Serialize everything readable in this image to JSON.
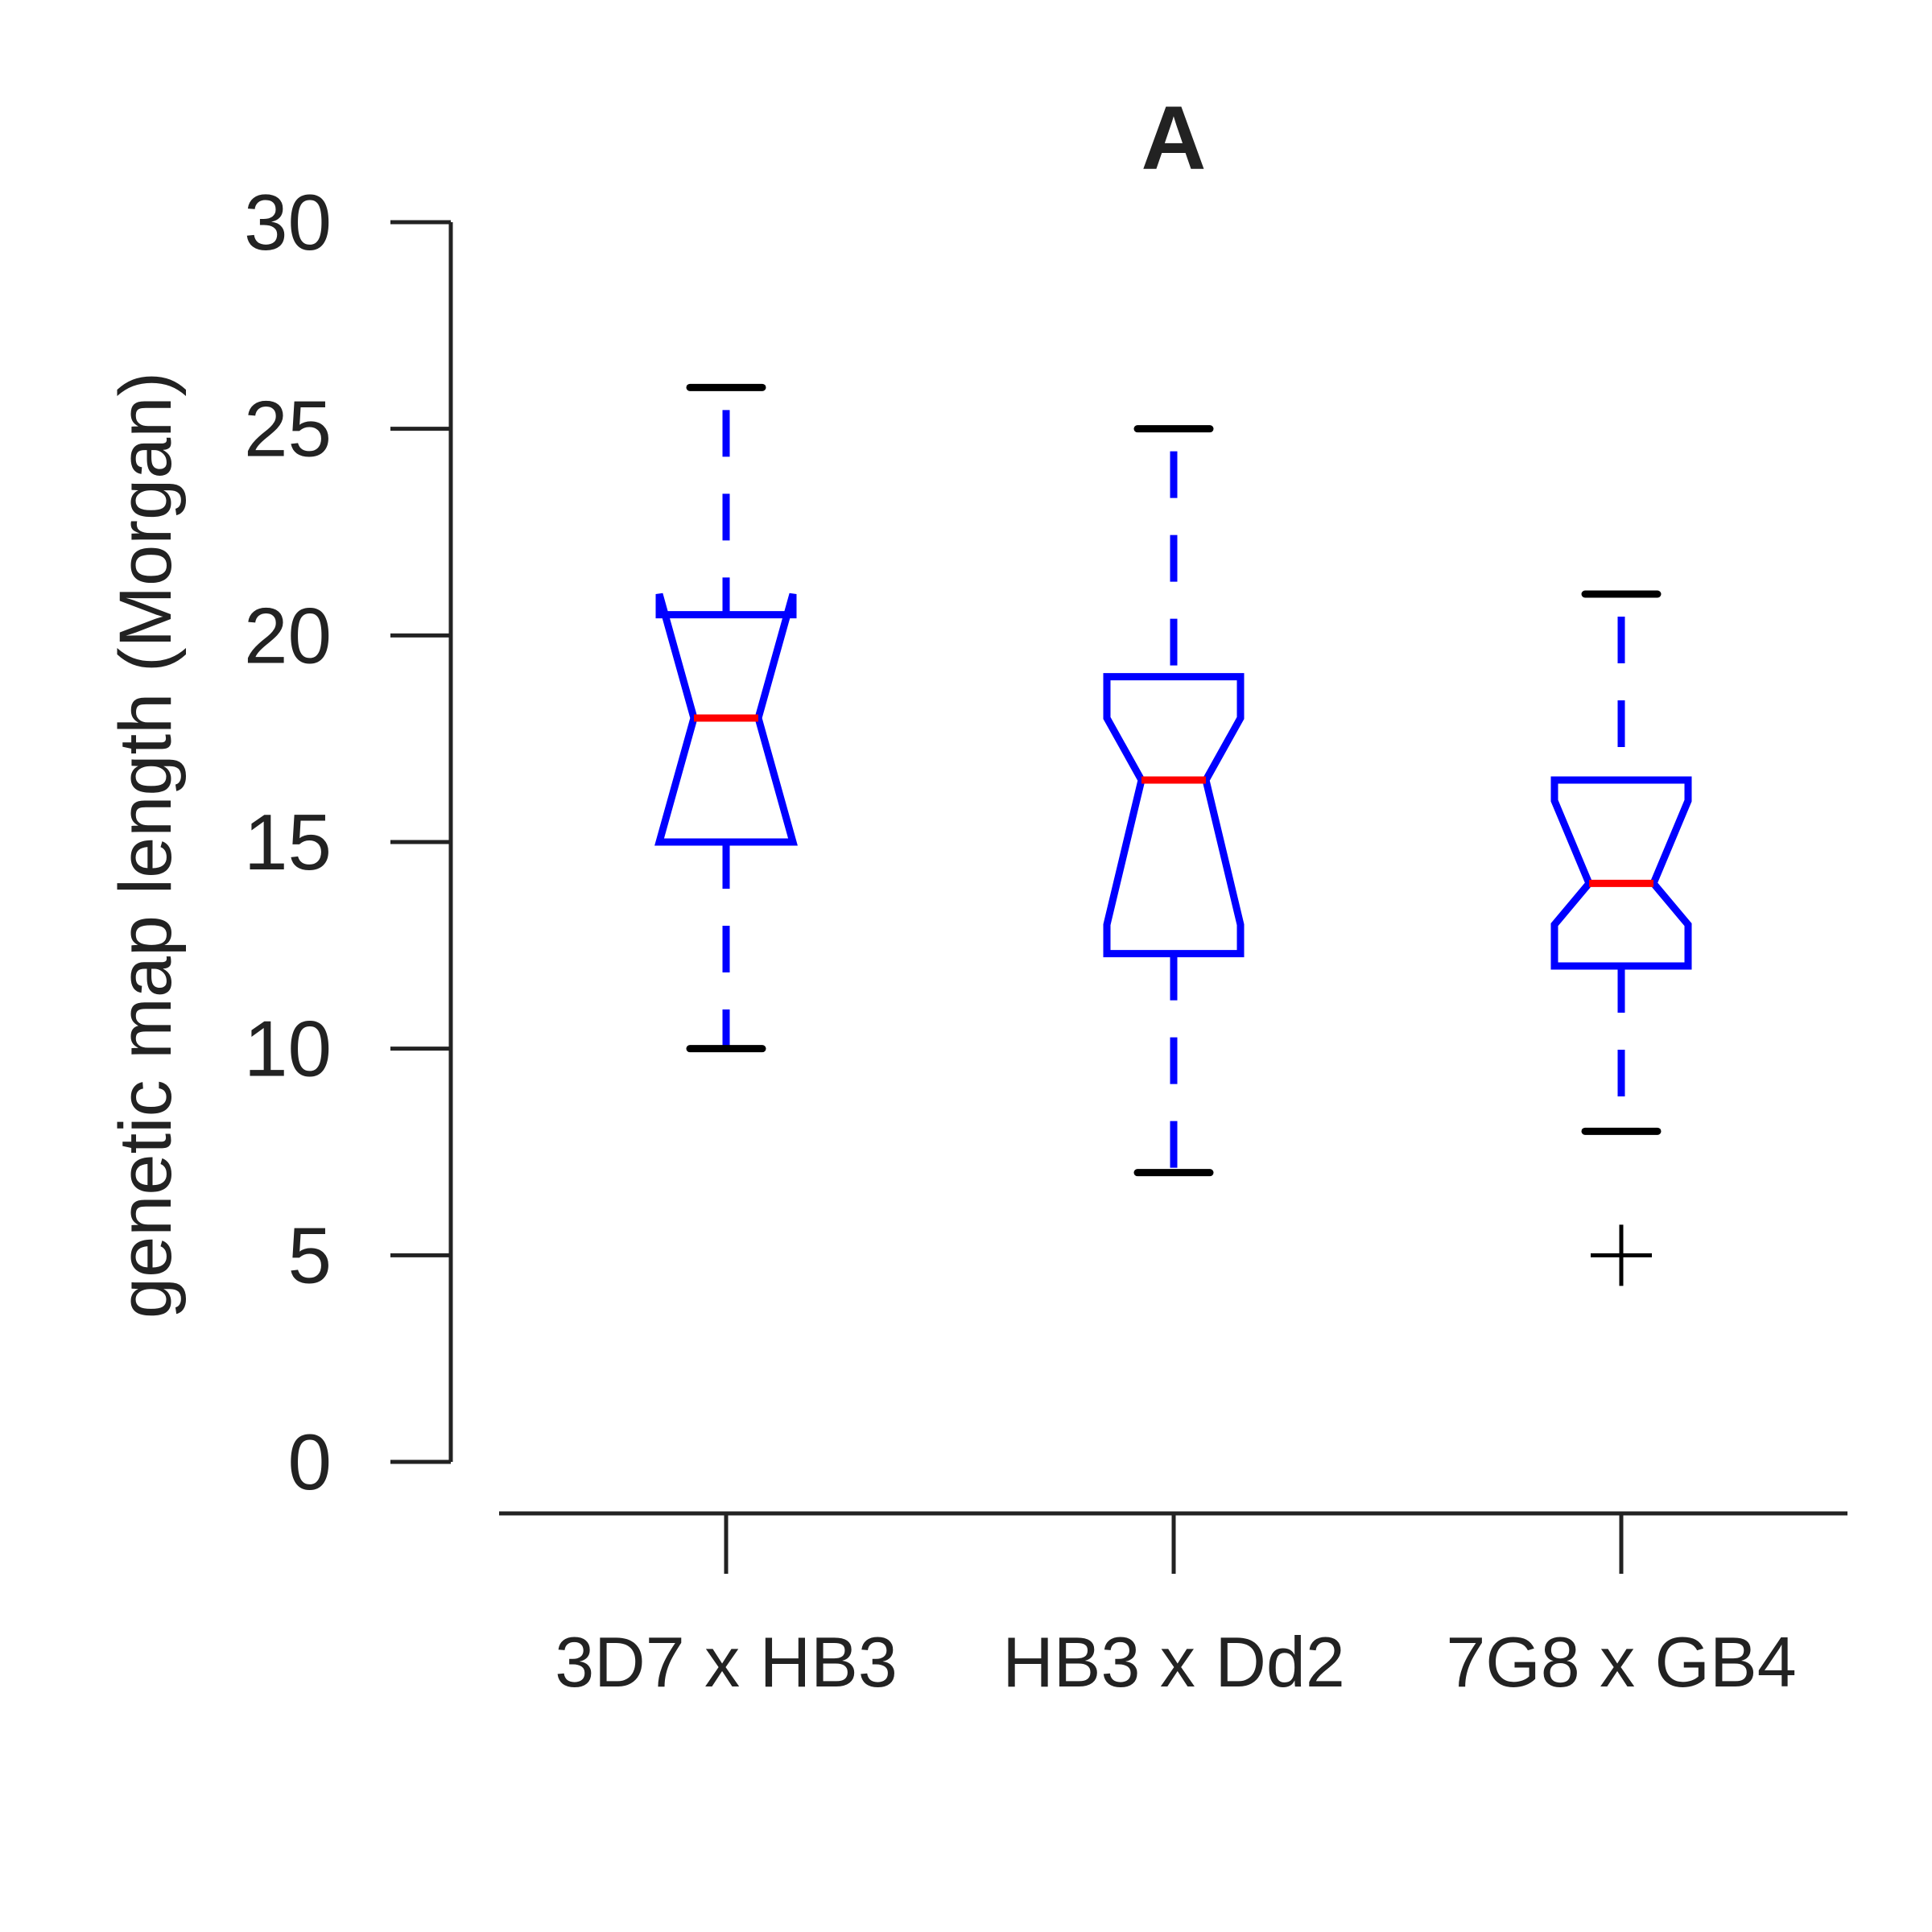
{
  "chart_data": {
    "type": "boxplot",
    "title": "A",
    "ylabel": "genetic map length (Morgan)",
    "ylim": [
      0,
      30
    ],
    "yticks": [
      0,
      5,
      10,
      15,
      20,
      25,
      30
    ],
    "notched": true,
    "categories": [
      "3D7 x HB3",
      "HB3 x Dd2",
      "7G8 x GB4"
    ],
    "boxes": [
      {
        "whisker_low": 10,
        "q1": 15,
        "median": 18,
        "q3": 20.5,
        "whisker_high": 26,
        "notch_low": 15,
        "notch_high": 21,
        "outliers": []
      },
      {
        "whisker_low": 7,
        "q1": 12.3,
        "median": 16.5,
        "q3": 19,
        "whisker_high": 25,
        "notch_low": 13,
        "notch_high": 18,
        "outliers": []
      },
      {
        "whisker_low": 8,
        "q1": 12,
        "median": 14,
        "q3": 16.5,
        "whisker_high": 21,
        "notch_low": 13,
        "notch_high": 16,
        "outliers": [
          5
        ]
      }
    ],
    "colors": {
      "box": "#0000ff",
      "median": "#ff0000",
      "cap": "#000000",
      "axis": "#222222",
      "outlier": "#000000"
    }
  }
}
